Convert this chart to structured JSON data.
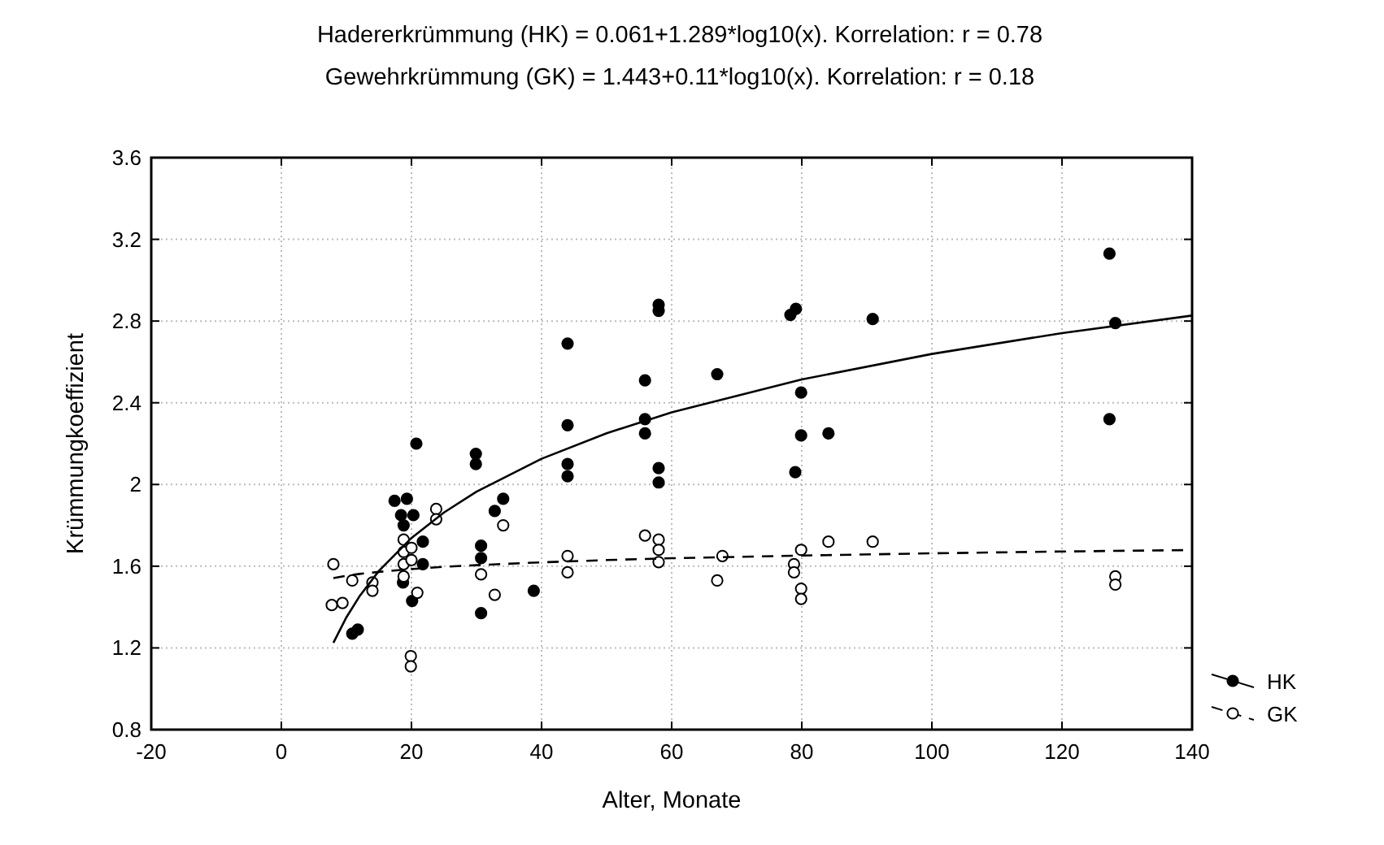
{
  "chart_data": {
    "type": "scatter",
    "title": "Hadererkrümmung (HK) = 0.061+1.289*log10(x). Korrelation: r = 0.78",
    "subtitle": "Gewehrkrümmung (GK) = 1.443+0.11*log10(x). Korrelation: r = 0.18",
    "xlabel": "Alter, Monate",
    "ylabel": "Krümmungkoeffizient",
    "xlim": [
      -20,
      140
    ],
    "xticks": [
      -20,
      0,
      20,
      40,
      60,
      80,
      100,
      120,
      140
    ],
    "ylim": [
      0.8,
      3.6
    ],
    "yticks": [
      0.8,
      1.2,
      1.6,
      2,
      2.4,
      2.8,
      3.2,
      3.6
    ],
    "grid": true,
    "legend": "bottom right",
    "series": [
      {
        "name": "HK",
        "color": "#000000",
        "marker": "circle",
        "line_style": "solid",
        "x": [
          20.75,
          17.4,
          19.3,
          18.4,
          20.3,
          18.8,
          21.75,
          21.75,
          18.7,
          20.1,
          10.9,
          11.75,
          29.9,
          29.9,
          44,
          44,
          44,
          44,
          55.9,
          55.9,
          55.9,
          58,
          58,
          58,
          58,
          67,
          78.25,
          79.1,
          79.9,
          79.9,
          79,
          84.1,
          32.8,
          34.1,
          30.7,
          30.7,
          30.7,
          38.8,
          90.9,
          127.3,
          128.2,
          127.3
        ],
        "values": [
          2.2,
          1.92,
          1.93,
          1.85,
          1.85,
          1.8,
          1.72,
          1.61,
          1.52,
          1.43,
          1.27,
          1.29,
          2.15,
          2.1,
          2.69,
          2.29,
          2.1,
          2.04,
          2.51,
          2.32,
          2.25,
          2.88,
          2.85,
          2.08,
          2.01,
          2.54,
          2.83,
          2.86,
          2.45,
          2.24,
          2.06,
          2.25,
          1.87,
          1.93,
          1.7,
          1.64,
          1.37,
          1.48,
          2.81,
          3.13,
          2.79,
          2.32
        ]
      },
      {
        "name": "GK",
        "color": "#ffffff",
        "marker": "circle",
        "line_style": "dashed",
        "x": [
          8,
          10.9,
          14,
          14,
          7.75,
          9.4,
          23.8,
          23.8,
          18.8,
          18.8,
          18.8,
          18.8,
          20,
          20,
          20.9,
          19.9,
          19.9,
          34.1,
          30.7,
          32.8,
          44,
          44,
          55.9,
          58,
          58,
          58,
          67.8,
          67,
          79.9,
          78.8,
          78.8,
          79.9,
          79.9,
          84.1,
          90.9,
          128.2,
          128.2
        ],
        "values": [
          1.61,
          1.53,
          1.52,
          1.48,
          1.41,
          1.42,
          1.88,
          1.83,
          1.73,
          1.67,
          1.61,
          1.55,
          1.69,
          1.63,
          1.47,
          1.16,
          1.11,
          1.8,
          1.56,
          1.46,
          1.65,
          1.57,
          1.75,
          1.73,
          1.68,
          1.62,
          1.65,
          1.53,
          1.68,
          1.61,
          1.57,
          1.49,
          1.44,
          1.72,
          1.72,
          1.55,
          1.51
        ]
      },
      {
        "type": "line",
        "color": "#000000",
        "marker": "none",
        "line_style": "solid",
        "x": [
          8,
          10,
          12,
          15,
          20,
          25,
          30,
          40,
          50,
          60,
          80,
          100,
          120,
          140
        ],
        "values": [
          1.225,
          1.35,
          1.452,
          1.577,
          1.738,
          1.863,
          1.965,
          2.126,
          2.251,
          2.353,
          2.514,
          2.639,
          2.741,
          2.827
        ]
      },
      {
        "type": "line",
        "color": "#000000",
        "marker": "none",
        "line_style": "dashed",
        "x": [
          8,
          10,
          12,
          15,
          20,
          25,
          30,
          40,
          50,
          60,
          80,
          100,
          120,
          140
        ],
        "values": [
          1.542,
          1.553,
          1.562,
          1.572,
          1.586,
          1.597,
          1.605,
          1.619,
          1.63,
          1.639,
          1.652,
          1.663,
          1.672,
          1.679
        ]
      }
    ]
  }
}
